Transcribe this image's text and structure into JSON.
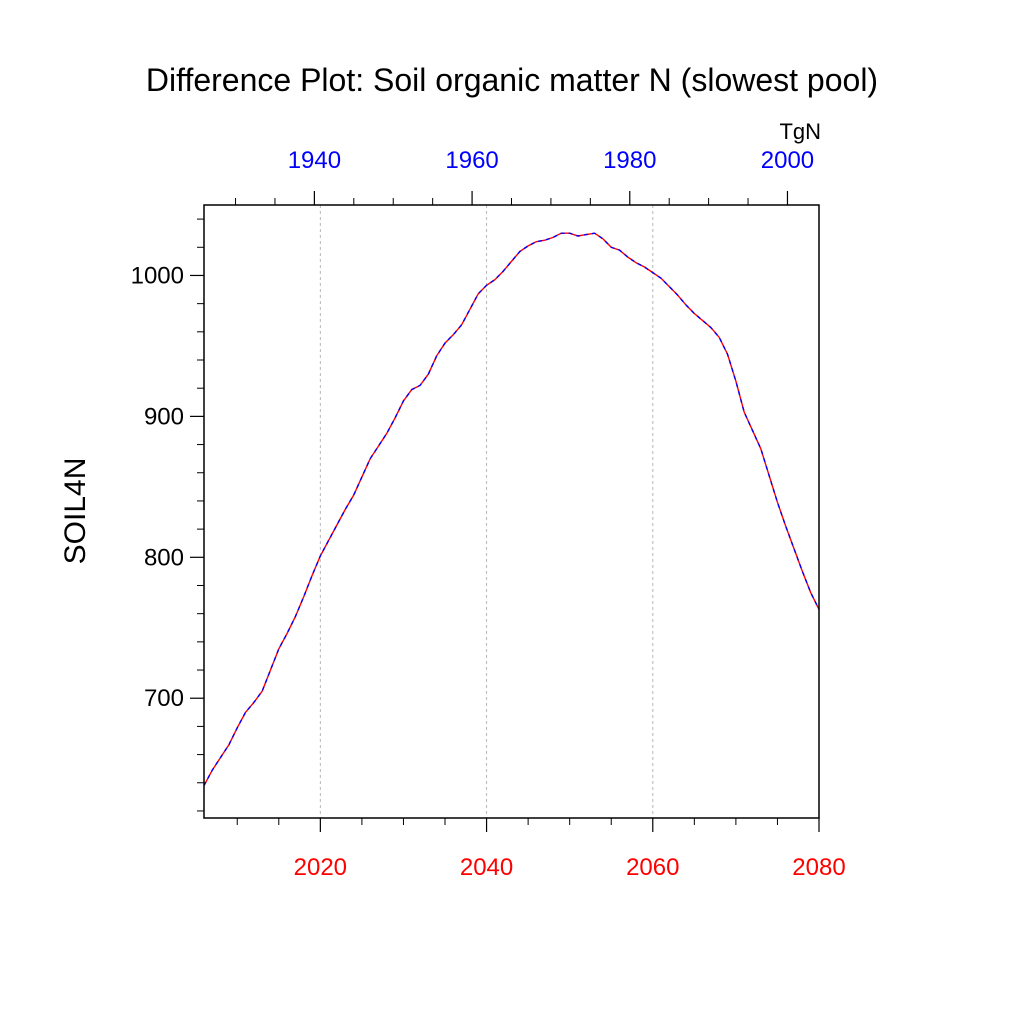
{
  "chart_data": {
    "type": "line",
    "title": "Difference Plot: Soil organic matter N (slowest pool)",
    "ylabel": "SOIL4N",
    "units_label": "TgN",
    "ylim": [
      615,
      1050
    ],
    "y_ticks": [
      700,
      800,
      900,
      1000
    ],
    "y_minor_step": 20,
    "bottom_axis": {
      "range": [
        2006,
        2080
      ],
      "ticks": [
        2020,
        2040,
        2060,
        2080
      ],
      "minor_step": 5,
      "color": "#ff0000",
      "grid": true
    },
    "top_axis": {
      "range": [
        1926,
        2004
      ],
      "ticks": [
        1940,
        1960,
        1980,
        2000
      ],
      "minor_step": 5,
      "color": "#0000ff"
    },
    "series": [
      {
        "name": "difference",
        "style": "dashed",
        "colors": [
          "#ff0000",
          "#0000ff"
        ],
        "x": [
          2006,
          2007,
          2008,
          2009,
          2010,
          2011,
          2012,
          2013,
          2014,
          2015,
          2016,
          2017,
          2018,
          2019,
          2020,
          2021,
          2022,
          2023,
          2024,
          2025,
          2026,
          2027,
          2028,
          2029,
          2030,
          2031,
          2032,
          2033,
          2034,
          2035,
          2036,
          2037,
          2038,
          2039,
          2040,
          2041,
          2042,
          2043,
          2044,
          2045,
          2046,
          2047,
          2048,
          2049,
          2050,
          2051,
          2052,
          2053,
          2054,
          2055,
          2056,
          2057,
          2058,
          2059,
          2060,
          2061,
          2062,
          2063,
          2064,
          2065,
          2066,
          2067,
          2068,
          2069,
          2070,
          2071,
          2072,
          2073,
          2074,
          2075,
          2076,
          2077,
          2078,
          2079,
          2080
        ],
        "values": [
          638,
          649,
          658,
          667,
          679,
          690,
          697,
          705,
          720,
          735,
          746,
          758,
          772,
          787,
          801,
          812,
          823,
          834,
          844,
          857,
          870,
          879,
          888,
          899,
          911,
          919,
          922,
          930,
          943,
          952,
          958,
          965,
          976,
          987,
          993,
          997,
          1003,
          1010,
          1017,
          1021,
          1024,
          1025,
          1027,
          1030,
          1030,
          1028,
          1029,
          1030,
          1026,
          1020,
          1018,
          1013,
          1009,
          1006,
          1002,
          998,
          992,
          986,
          979,
          973,
          968,
          963,
          956,
          944,
          925,
          903,
          890,
          877,
          858,
          839,
          822,
          806,
          790,
          775,
          763
        ]
      }
    ]
  }
}
